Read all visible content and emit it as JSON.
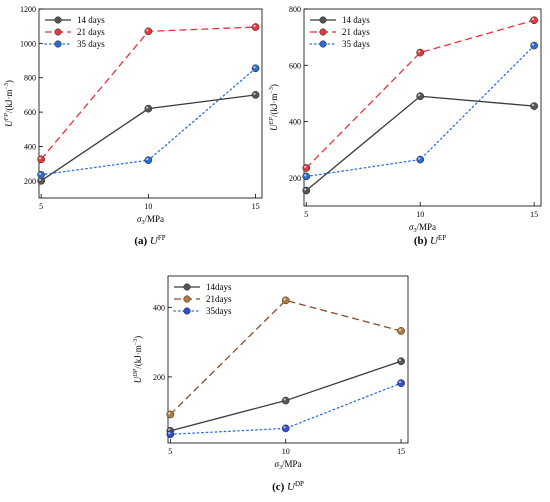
{
  "chart_data": [
    {
      "type": "line",
      "caption_letter": "(a)",
      "caption_symbol": "U",
      "caption_sup": "FP",
      "ylabel_main": "U",
      "ylabel_sup": "FP",
      "ylabel_unit": "/(kJ·m",
      "ylabel_exp": "−3",
      "ylabel_close": ")",
      "xlabel_main": "σ",
      "xlabel_sub": "3",
      "xlabel_unit": "/MPa",
      "x": [
        5,
        10,
        15
      ],
      "xlim": [
        4.9,
        15.3
      ],
      "ylim": [
        100,
        1200
      ],
      "yticks": [
        200,
        400,
        600,
        800,
        1000,
        1200
      ],
      "xticks": [
        5,
        10,
        15
      ],
      "legend_position": "top-left",
      "series": [
        {
          "name": "14 days",
          "values": [
            200,
            620,
            700
          ],
          "color": "#3a3a3a",
          "dash": "solid",
          "marker": "#555555"
        },
        {
          "name": "21 days",
          "values": [
            325,
            1070,
            1095
          ],
          "color": "#e8323c",
          "dash": "dashed",
          "marker": "#e03b3b"
        },
        {
          "name": "35 days",
          "values": [
            235,
            320,
            855
          ],
          "color": "#2f6fd6",
          "dash": "dotted",
          "marker": "#2e6cd0"
        }
      ]
    },
    {
      "type": "line",
      "caption_letter": "(b)",
      "caption_symbol": "U",
      "caption_sup": "EP",
      "ylabel_main": "U",
      "ylabel_sup": "EP",
      "ylabel_unit": "/(kJ·m",
      "ylabel_exp": "−3",
      "ylabel_close": ")",
      "xlabel_main": "σ",
      "xlabel_sub": "3",
      "xlabel_unit": "/MPa",
      "x": [
        5,
        10,
        15
      ],
      "xlim": [
        4.9,
        15.3
      ],
      "ylim": [
        100,
        800
      ],
      "yticks": [
        200,
        400,
        600,
        800
      ],
      "xticks": [
        5,
        10,
        15
      ],
      "legend_position": "top-left",
      "series": [
        {
          "name": "14 days",
          "values": [
            155,
            490,
            455
          ],
          "color": "#3a3a3a",
          "dash": "solid",
          "marker": "#555555"
        },
        {
          "name": "21 days",
          "values": [
            235,
            645,
            760
          ],
          "color": "#e8323c",
          "dash": "dashed",
          "marker": "#e03b3b"
        },
        {
          "name": "35 days",
          "values": [
            205,
            265,
            670
          ],
          "color": "#2f6fd6",
          "dash": "dotted",
          "marker": "#2e6cd0"
        }
      ]
    },
    {
      "type": "line",
      "caption_letter": "(c)",
      "caption_symbol": "U",
      "caption_sup": "DP",
      "ylabel_main": "U",
      "ylabel_sup": "DP",
      "ylabel_unit": "/(kJ·m",
      "ylabel_exp": "−3",
      "ylabel_close": ")",
      "xlabel_main": "σ",
      "xlabel_sub": "3",
      "xlabel_unit": "/MPa",
      "x": [
        5,
        10,
        15
      ],
      "xlim": [
        4.9,
        15.3
      ],
      "ylim": [
        10,
        490
      ],
      "yticks": [
        200,
        400
      ],
      "xticks": [
        5,
        10,
        15
      ],
      "legend_position": "top-left",
      "series": [
        {
          "name": "14days",
          "values": [
            45,
            132,
            245
          ],
          "color": "#3a3a3a",
          "dash": "solid",
          "marker": "#555555"
        },
        {
          "name": "21days",
          "values": [
            92,
            420,
            332
          ],
          "color": "#8b4a2b",
          "dash": "dashed",
          "marker": "#b07a3a"
        },
        {
          "name": "35days",
          "values": [
            35,
            52,
            182
          ],
          "color": "#2f6fd6",
          "dash": "dotted",
          "marker": "#2e4fd0"
        }
      ]
    }
  ]
}
